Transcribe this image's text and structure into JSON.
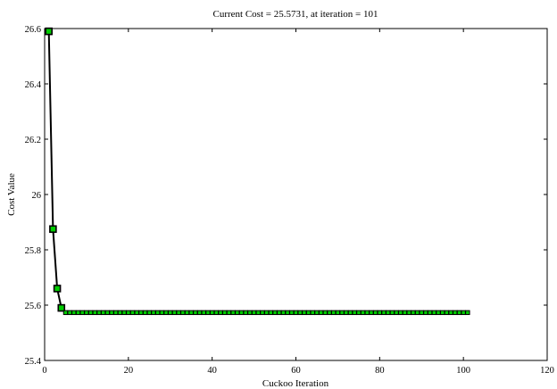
{
  "chart_data": {
    "type": "line",
    "title": "Current Cost = 25.5731, at iteration = 101",
    "xlabel": "Cuckoo Iteration",
    "ylabel": "Cost Value",
    "xlim": [
      0,
      120
    ],
    "ylim": [
      25.4,
      26.6
    ],
    "xticks": [
      0,
      20,
      40,
      60,
      80,
      100,
      120
    ],
    "yticks": [
      25.4,
      25.6,
      25.8,
      26.0,
      26.2,
      26.4,
      26.6
    ],
    "xtick_labels": [
      "0",
      "20",
      "40",
      "60",
      "80",
      "100",
      "120"
    ],
    "ytick_labels": [
      "25.4",
      "25.6",
      "25.8",
      "26",
      "26.2",
      "26.4",
      "26.6"
    ],
    "grid": false,
    "legend": "none",
    "series": [
      {
        "line_color": "#000000",
        "marker": "square",
        "marker_fill": "#00cc00",
        "marker_edge": "#000000",
        "x": [
          1,
          2,
          3,
          4,
          5,
          6,
          7,
          8,
          9,
          10,
          11,
          12,
          13,
          14,
          15,
          16,
          17,
          18,
          19,
          20,
          21,
          22,
          23,
          24,
          25,
          26,
          27,
          28,
          29,
          30,
          31,
          32,
          33,
          34,
          35,
          36,
          37,
          38,
          39,
          40,
          41,
          42,
          43,
          44,
          45,
          46,
          47,
          48,
          49,
          50,
          51,
          52,
          53,
          54,
          55,
          56,
          57,
          58,
          59,
          60,
          61,
          62,
          63,
          64,
          65,
          66,
          67,
          68,
          69,
          70,
          71,
          72,
          73,
          74,
          75,
          76,
          77,
          78,
          79,
          80,
          81,
          82,
          83,
          84,
          85,
          86,
          87,
          88,
          89,
          90,
          91,
          92,
          93,
          94,
          95,
          96,
          97,
          98,
          99,
          100,
          101
        ],
        "y": [
          26.59,
          25.875,
          25.66,
          25.59,
          25.5731,
          25.5731,
          25.5731,
          25.5731,
          25.5731,
          25.5731,
          25.5731,
          25.5731,
          25.5731,
          25.5731,
          25.5731,
          25.5731,
          25.5731,
          25.5731,
          25.5731,
          25.5731,
          25.5731,
          25.5731,
          25.5731,
          25.5731,
          25.5731,
          25.5731,
          25.5731,
          25.5731,
          25.5731,
          25.5731,
          25.5731,
          25.5731,
          25.5731,
          25.5731,
          25.5731,
          25.5731,
          25.5731,
          25.5731,
          25.5731,
          25.5731,
          25.5731,
          25.5731,
          25.5731,
          25.5731,
          25.5731,
          25.5731,
          25.5731,
          25.5731,
          25.5731,
          25.5731,
          25.5731,
          25.5731,
          25.5731,
          25.5731,
          25.5731,
          25.5731,
          25.5731,
          25.5731,
          25.5731,
          25.5731,
          25.5731,
          25.5731,
          25.5731,
          25.5731,
          25.5731,
          25.5731,
          25.5731,
          25.5731,
          25.5731,
          25.5731,
          25.5731,
          25.5731,
          25.5731,
          25.5731,
          25.5731,
          25.5731,
          25.5731,
          25.5731,
          25.5731,
          25.5731,
          25.5731,
          25.5731,
          25.5731,
          25.5731,
          25.5731,
          25.5731,
          25.5731,
          25.5731,
          25.5731,
          25.5731,
          25.5731,
          25.5731,
          25.5731,
          25.5731,
          25.5731,
          25.5731,
          25.5731,
          25.5731,
          25.5731,
          25.5731,
          25.5731
        ]
      }
    ]
  }
}
